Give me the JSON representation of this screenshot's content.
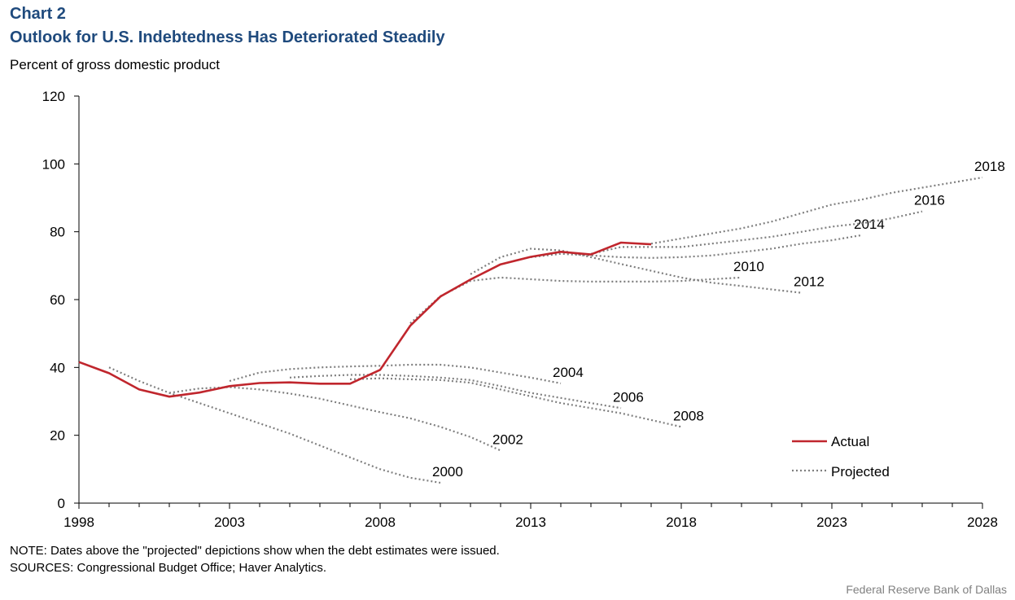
{
  "header": {
    "chart_number": "Chart 2",
    "title": "Outlook for U.S. Indebtedness Has Deteriorated Steadily",
    "unit_label": "Percent of gross domestic product"
  },
  "footer": {
    "note": "NOTE: Dates above the \"projected\" depictions show when the debt estimates were issued.",
    "sources": "SOURCES: Congressional Budget Office; Haver Analytics.",
    "credit": "Federal Reserve Bank of Dallas"
  },
  "colors": {
    "actual": "#c0262d",
    "projected": "#7f7f7f",
    "title": "#1f4a7d",
    "axis": "#000000"
  },
  "chart_data": {
    "type": "line",
    "title": "Outlook for U.S. Indebtedness Has Deteriorated Steadily",
    "ylabel": "Percent of gross domestic product",
    "xlim": [
      1998,
      2028
    ],
    "ylim": [
      0,
      120
    ],
    "x_ticks": [
      1998,
      2003,
      2008,
      2013,
      2018,
      2023,
      2028
    ],
    "y_ticks": [
      0,
      20,
      40,
      60,
      80,
      100,
      120
    ],
    "grid": false,
    "legend": {
      "position": "bottom-right",
      "entries": [
        "Actual",
        "Projected"
      ]
    },
    "series": [
      {
        "name": "Actual",
        "style": "solid",
        "x": [
          1998,
          1999,
          2000,
          2001,
          2002,
          2003,
          2004,
          2005,
          2006,
          2007,
          2008,
          2009,
          2010,
          2011,
          2012,
          2013,
          2014,
          2015,
          2016,
          2017
        ],
        "y": [
          41.6,
          38.3,
          33.5,
          31.4,
          32.6,
          34.5,
          35.4,
          35.6,
          35.2,
          35.2,
          39.3,
          52.3,
          60.9,
          65.9,
          70.4,
          72.6,
          74.1,
          73.3,
          76.8,
          76.3
        ]
      },
      {
        "name": "Projected",
        "style": "dotted",
        "projections": [
          {
            "label": "2000",
            "x": [
              1999,
              2000,
              2001,
              2002,
              2003,
              2004,
              2005,
              2006,
              2007,
              2008,
              2009,
              2010
            ],
            "y": [
              40.0,
              36.0,
              32.5,
              29.5,
              26.5,
              23.5,
              20.5,
              17.0,
              13.5,
              10.0,
              7.5,
              6.0
            ]
          },
          {
            "label": "2002",
            "x": [
              2001,
              2002,
              2003,
              2004,
              2005,
              2006,
              2007,
              2008,
              2009,
              2010,
              2011,
              2012
            ],
            "y": [
              32.5,
              33.8,
              34.2,
              33.5,
              32.3,
              30.8,
              28.8,
              26.8,
              25.0,
              22.5,
              19.5,
              15.5
            ]
          },
          {
            "label": "2004",
            "x": [
              2003,
              2004,
              2005,
              2006,
              2007,
              2008,
              2009,
              2010,
              2011,
              2012,
              2013,
              2014
            ],
            "y": [
              36.0,
              38.5,
              39.5,
              40.0,
              40.3,
              40.5,
              40.8,
              40.8,
              40.0,
              38.5,
              37.0,
              35.3
            ]
          },
          {
            "label": "2006",
            "x": [
              2005,
              2006,
              2007,
              2008,
              2009,
              2010,
              2011,
              2012,
              2013,
              2014,
              2015,
              2016
            ],
            "y": [
              37.0,
              37.5,
              37.8,
              37.8,
              37.5,
              37.0,
              36.3,
              34.5,
              32.5,
              31.0,
              29.5,
              28.0
            ]
          },
          {
            "label": "2008",
            "x": [
              2007,
              2008,
              2009,
              2010,
              2011,
              2012,
              2013,
              2014,
              2015,
              2016,
              2017,
              2018
            ],
            "y": [
              36.5,
              36.8,
              36.5,
              36.3,
              35.5,
              33.5,
              31.5,
              29.5,
              28.0,
              26.5,
              24.5,
              22.5
            ]
          },
          {
            "label": "2010",
            "x": [
              2009,
              2010,
              2011,
              2012,
              2013,
              2014,
              2015,
              2016,
              2017,
              2018,
              2019,
              2020
            ],
            "y": [
              53.0,
              61.0,
              65.5,
              66.5,
              66.0,
              65.5,
              65.3,
              65.3,
              65.3,
              65.5,
              66.0,
              66.5
            ]
          },
          {
            "label": "2012",
            "x": [
              2011,
              2012,
              2013,
              2014,
              2015,
              2016,
              2017,
              2018,
              2019,
              2020,
              2021,
              2022
            ],
            "y": [
              67.5,
              72.5,
              75.0,
              74.5,
              72.5,
              70.5,
              68.5,
              66.5,
              65.0,
              64.0,
              63.0,
              62.0
            ]
          },
          {
            "label": "2014",
            "x": [
              2013,
              2014,
              2015,
              2016,
              2017,
              2018,
              2019,
              2020,
              2021,
              2022,
              2023,
              2024
            ],
            "y": [
              72.5,
              73.5,
              73.0,
              72.5,
              72.3,
              72.5,
              73.0,
              74.0,
              75.0,
              76.5,
              77.5,
              79.0
            ]
          },
          {
            "label": "2016",
            "x": [
              2015,
              2016,
              2017,
              2018,
              2019,
              2020,
              2021,
              2022,
              2023,
              2024,
              2025,
              2026
            ],
            "y": [
              73.5,
              75.5,
              75.5,
              75.5,
              76.5,
              77.5,
              78.5,
              80.0,
              81.5,
              82.5,
              84.0,
              86.0
            ]
          },
          {
            "label": "2018",
            "x": [
              2017,
              2018,
              2019,
              2020,
              2021,
              2022,
              2023,
              2024,
              2025,
              2026,
              2027,
              2028
            ],
            "y": [
              76.5,
              78.0,
              79.5,
              81.0,
              83.0,
              85.5,
              88.0,
              89.5,
              91.5,
              93.0,
              94.5,
              96.0
            ]
          }
        ]
      }
    ]
  }
}
